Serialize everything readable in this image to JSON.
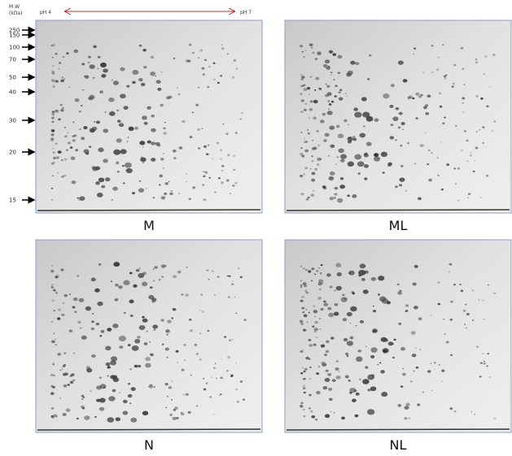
{
  "axis": {
    "title_line1": "M.W",
    "title_line2": "(kDa)",
    "markers": [
      "250",
      "150",
      "100",
      "70",
      "50",
      "40",
      "30",
      "20",
      "15"
    ]
  },
  "ph": {
    "left": "pH 4",
    "right": "pH 7"
  },
  "panels": [
    {
      "label": "M"
    },
    {
      "label": "ML"
    },
    {
      "label": "N"
    },
    {
      "label": "NL"
    }
  ]
}
